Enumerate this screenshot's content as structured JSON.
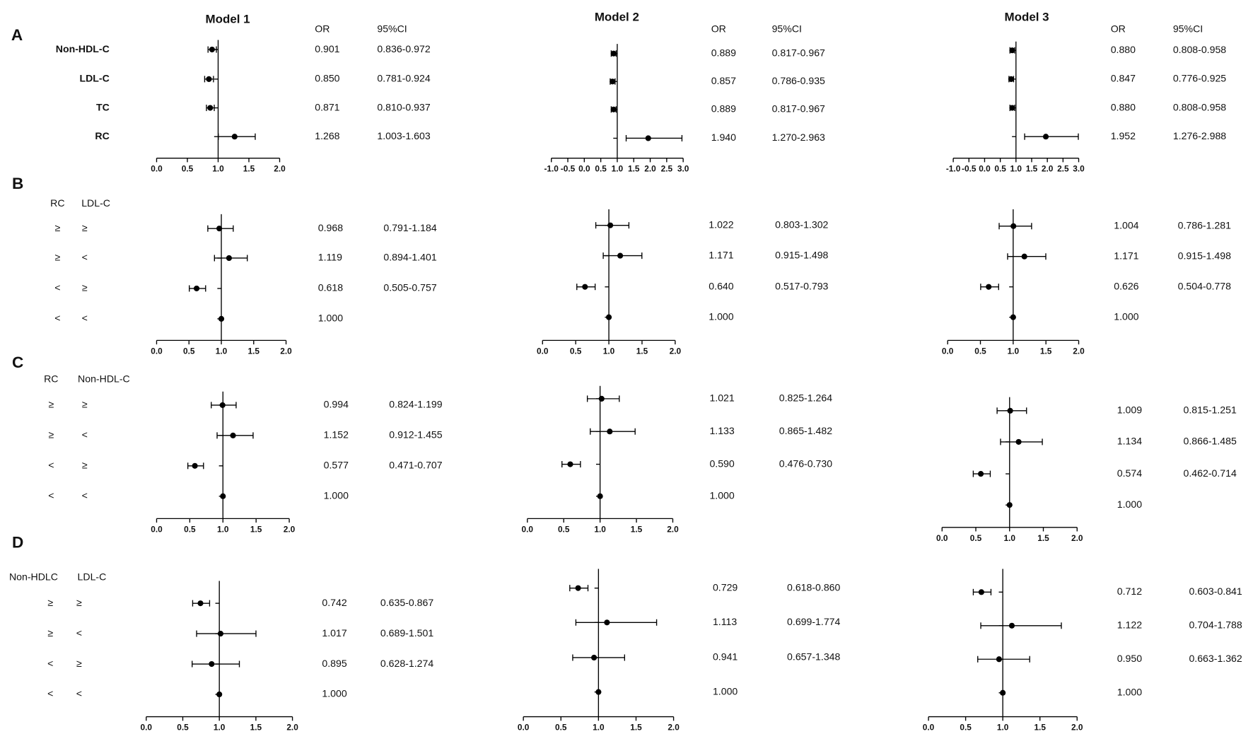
{
  "chart_data": [
    {
      "type": "forest",
      "panel": "A",
      "title": "Model 1",
      "columns": [
        "OR",
        "95%CI"
      ],
      "categories": [
        "Non-HDL-C",
        "LDL-C",
        "TC",
        "RC"
      ],
      "values": [
        0.901,
        0.85,
        0.871,
        1.268
      ],
      "value_labels": [
        "0.901",
        "0.850",
        "0.871",
        "1.268"
      ],
      "lower": [
        0.836,
        0.781,
        0.81,
        1.003
      ],
      "upper": [
        0.972,
        0.924,
        0.937,
        1.603
      ],
      "ci_labels": [
        "0.836-0.972",
        "0.781-0.924",
        "0.810-0.937",
        "1.003-1.603"
      ],
      "xlim": [
        0,
        2
      ],
      "xticks": [
        {
          "value": 0,
          "label": "0.0"
        },
        0.5,
        {
          "value": 1,
          "label": "1.0"
        },
        1.5,
        {
          "value": 2,
          "label": "2.0"
        }
      ],
      "refline": 1,
      "color": "#000000"
    },
    {
      "type": "forest",
      "title": "Model 2",
      "columns": [
        "OR",
        "95%CI"
      ],
      "values": [
        0.889,
        0.857,
        0.889,
        1.94
      ],
      "value_labels": [
        "0.889",
        "0.857",
        "0.889",
        "1.940"
      ],
      "lower": [
        0.817,
        0.786,
        0.817,
        1.27
      ],
      "upper": [
        0.967,
        0.935,
        0.967,
        2.963
      ],
      "ci_labels": [
        "0.817-0.967",
        "0.786-0.935",
        "0.817-0.967",
        "1.270-2.963"
      ],
      "xlim": [
        -1,
        3
      ],
      "xticks": [
        {
          "value": -1,
          "label": "-1.0"
        },
        -0.5,
        {
          "value": 0,
          "label": "0.0"
        },
        0.5,
        {
          "value": 1,
          "label": "1.0"
        },
        1.5,
        {
          "value": 2,
          "label": "2.0"
        },
        2.5,
        {
          "value": 3,
          "label": "3.0"
        }
      ],
      "refline": 1,
      "color": "#000000"
    },
    {
      "type": "forest",
      "title": "Model 3",
      "columns": [
        "OR",
        "95%CI"
      ],
      "values": [
        0.88,
        0.847,
        0.88,
        1.952
      ],
      "value_labels": [
        "0.880",
        "0.847",
        "0.880",
        "1.952"
      ],
      "lower": [
        0.808,
        0.776,
        0.808,
        1.276
      ],
      "upper": [
        0.958,
        0.925,
        0.958,
        2.988
      ],
      "ci_labels": [
        "0.808-0.958",
        "0.776-0.925",
        "0.808-0.958",
        "1.276-2.988"
      ],
      "xlim": [
        -1,
        3
      ],
      "xticks": [
        {
          "value": -1,
          "label": "-1.0"
        },
        -0.5,
        {
          "value": 0,
          "label": "0.0"
        },
        0.5,
        {
          "value": 1,
          "label": "1.0"
        },
        1.5,
        {
          "value": 2,
          "label": "2.0"
        },
        2.5,
        {
          "value": 3,
          "label": "3.0"
        }
      ],
      "refline": 1,
      "color": "#000000"
    },
    {
      "type": "forest",
      "panel": "B",
      "groups": [
        "RC",
        "LDL-C"
      ],
      "categories": [
        [
          "≥",
          "≥"
        ],
        [
          "≥",
          "<"
        ],
        [
          "<",
          "≥"
        ],
        [
          "<",
          "<"
        ]
      ],
      "values": [
        0.968,
        1.119,
        0.618,
        1.0
      ],
      "value_labels": [
        "0.968",
        "1.119",
        "0.618",
        "1.000"
      ],
      "lower": [
        0.791,
        0.894,
        0.505,
        null
      ],
      "upper": [
        1.184,
        1.401,
        0.757,
        null
      ],
      "ci_labels": [
        "0.791-1.184",
        "0.894-1.401",
        "0.505-0.757",
        null
      ],
      "xlim": [
        0,
        2
      ],
      "xticks": [
        {
          "value": 0,
          "label": "0.0"
        },
        0.5,
        {
          "value": 1,
          "label": "1.0"
        },
        1.5,
        {
          "value": 2,
          "label": "2.0"
        }
      ],
      "refline": 1,
      "color": "#000000"
    },
    {
      "type": "forest",
      "values": [
        1.022,
        1.171,
        0.64,
        1.0
      ],
      "value_labels": [
        "1.022",
        "1.171",
        "0.640",
        "1.000"
      ],
      "lower": [
        0.803,
        0.915,
        0.517,
        null
      ],
      "upper": [
        1.302,
        1.498,
        0.793,
        null
      ],
      "ci_labels": [
        "0.803-1.302",
        "0.915-1.498",
        "0.517-0.793",
        null
      ],
      "xlim": [
        0,
        2
      ],
      "xticks": [
        {
          "value": 0,
          "label": "0.0"
        },
        0.5,
        {
          "value": 1,
          "label": "1.0"
        },
        1.5,
        {
          "value": 2,
          "label": "2.0"
        }
      ],
      "refline": 1,
      "color": "#000000"
    },
    {
      "type": "forest",
      "values": [
        1.004,
        1.171,
        0.626,
        1.0
      ],
      "value_labels": [
        "1.004",
        "1.171",
        "0.626",
        "1.000"
      ],
      "lower": [
        0.786,
        0.915,
        0.504,
        null
      ],
      "upper": [
        1.281,
        1.498,
        0.778,
        null
      ],
      "ci_labels": [
        "0.786-1.281",
        "0.915-1.498",
        "0.504-0.778",
        null
      ],
      "xlim": [
        0,
        2
      ],
      "xticks": [
        {
          "value": 0,
          "label": "0.0"
        },
        0.5,
        {
          "value": 1,
          "label": "1.0"
        },
        1.5,
        {
          "value": 2,
          "label": "2.0"
        }
      ],
      "refline": 1,
      "color": "#000000"
    },
    {
      "type": "forest",
      "panel": "C",
      "groups": [
        "RC",
        "Non-HDL-C"
      ],
      "categories": [
        [
          "≥",
          "≥"
        ],
        [
          "≥",
          "<"
        ],
        [
          "<",
          "≥"
        ],
        [
          "<",
          "<"
        ]
      ],
      "values": [
        0.994,
        1.152,
        0.577,
        1.0
      ],
      "value_labels": [
        "0.994",
        "1.152",
        "0.577",
        "1.000"
      ],
      "lower": [
        0.824,
        0.912,
        0.471,
        null
      ],
      "upper": [
        1.199,
        1.455,
        0.707,
        null
      ],
      "ci_labels": [
        "0.824-1.199",
        "0.912-1.455",
        "0.471-0.707",
        null
      ],
      "xlim": [
        0,
        2
      ],
      "xticks": [
        {
          "value": 0,
          "label": "0.0"
        },
        0.5,
        {
          "value": 1,
          "label": "1.0"
        },
        1.5,
        {
          "value": 2,
          "label": "2.0"
        }
      ],
      "refline": 1,
      "color": "#000000"
    },
    {
      "type": "forest",
      "values": [
        1.021,
        1.133,
        0.59,
        1.0
      ],
      "value_labels": [
        "1.021",
        "1.133",
        "0.590",
        "1.000"
      ],
      "lower": [
        0.825,
        0.865,
        0.476,
        null
      ],
      "upper": [
        1.264,
        1.482,
        0.73,
        null
      ],
      "ci_labels": [
        "0.825-1.264",
        "0.865-1.482",
        "0.476-0.730",
        null
      ],
      "xlim": [
        0,
        2
      ],
      "xticks": [
        {
          "value": 0,
          "label": "0.0"
        },
        0.5,
        {
          "value": 1,
          "label": "1.0"
        },
        1.5,
        {
          "value": 2,
          "label": "2.0"
        }
      ],
      "refline": 1,
      "color": "#000000"
    },
    {
      "type": "forest",
      "values": [
        1.009,
        1.134,
        0.574,
        1.0
      ],
      "value_labels": [
        "1.009",
        "1.134",
        "0.574",
        "1.000"
      ],
      "lower": [
        0.815,
        0.866,
        0.462,
        null
      ],
      "upper": [
        1.251,
        1.485,
        0.714,
        null
      ],
      "ci_labels": [
        "0.815-1.251",
        "0.866-1.485",
        "0.462-0.714",
        null
      ],
      "xlim": [
        0,
        2
      ],
      "xticks": [
        {
          "value": 0,
          "label": "0.0"
        },
        0.5,
        {
          "value": 1,
          "label": "1.0"
        },
        1.5,
        {
          "value": 2,
          "label": "2.0"
        }
      ],
      "refline": 1,
      "color": "#000000"
    },
    {
      "type": "forest",
      "panel": "D",
      "groups": [
        "Non-HDLC",
        "LDL-C"
      ],
      "categories": [
        [
          "≥",
          "≥"
        ],
        [
          "≥",
          "<"
        ],
        [
          "<",
          "≥"
        ],
        [
          "<",
          "<"
        ]
      ],
      "values": [
        0.742,
        1.017,
        0.895,
        1.0
      ],
      "value_labels": [
        "0.742",
        "1.017",
        "0.895",
        "1.000"
      ],
      "lower": [
        0.635,
        0.689,
        0.628,
        null
      ],
      "upper": [
        0.867,
        1.501,
        1.274,
        null
      ],
      "ci_labels": [
        "0.635-0.867",
        "0.689-1.501",
        "0.628-1.274",
        null
      ],
      "xlim": [
        0,
        2
      ],
      "xticks": [
        {
          "value": 0,
          "label": "0.0"
        },
        0.5,
        {
          "value": 1,
          "label": "1.0"
        },
        1.5,
        {
          "value": 2,
          "label": "2.0"
        }
      ],
      "refline": 1,
      "color": "#000000"
    },
    {
      "type": "forest",
      "values": [
        0.729,
        1.113,
        0.941,
        1.0
      ],
      "value_labels": [
        "0.729",
        "1.113",
        "0.941",
        "1.000"
      ],
      "lower": [
        0.618,
        0.699,
        0.657,
        null
      ],
      "upper": [
        0.86,
        1.774,
        1.348,
        null
      ],
      "ci_labels": [
        "0.618-0.860",
        "0.699-1.774",
        "0.657-1.348",
        null
      ],
      "xlim": [
        0,
        2
      ],
      "xticks": [
        {
          "value": 0,
          "label": "0.0"
        },
        0.5,
        {
          "value": 1,
          "label": "1.0"
        },
        1.5,
        {
          "value": 2,
          "label": "2.0"
        }
      ],
      "refline": 1,
      "color": "#000000"
    },
    {
      "type": "forest",
      "values": [
        0.712,
        1.122,
        0.95,
        1.0
      ],
      "value_labels": [
        "0.712",
        "1.122",
        "0.950",
        "1.000"
      ],
      "lower": [
        0.603,
        0.704,
        0.663,
        null
      ],
      "upper": [
        0.841,
        1.788,
        1.362,
        null
      ],
      "ci_labels": [
        "0.603-0.841",
        "0.704-1.788",
        "0.663-1.362",
        null
      ],
      "xlim": [
        0,
        2
      ],
      "xticks": [
        {
          "value": 0,
          "label": "0.0"
        },
        0.5,
        {
          "value": 1,
          "label": "1.0"
        },
        1.5,
        {
          "value": 2,
          "label": "2.0"
        }
      ],
      "refline": 1,
      "color": "#000000"
    }
  ]
}
